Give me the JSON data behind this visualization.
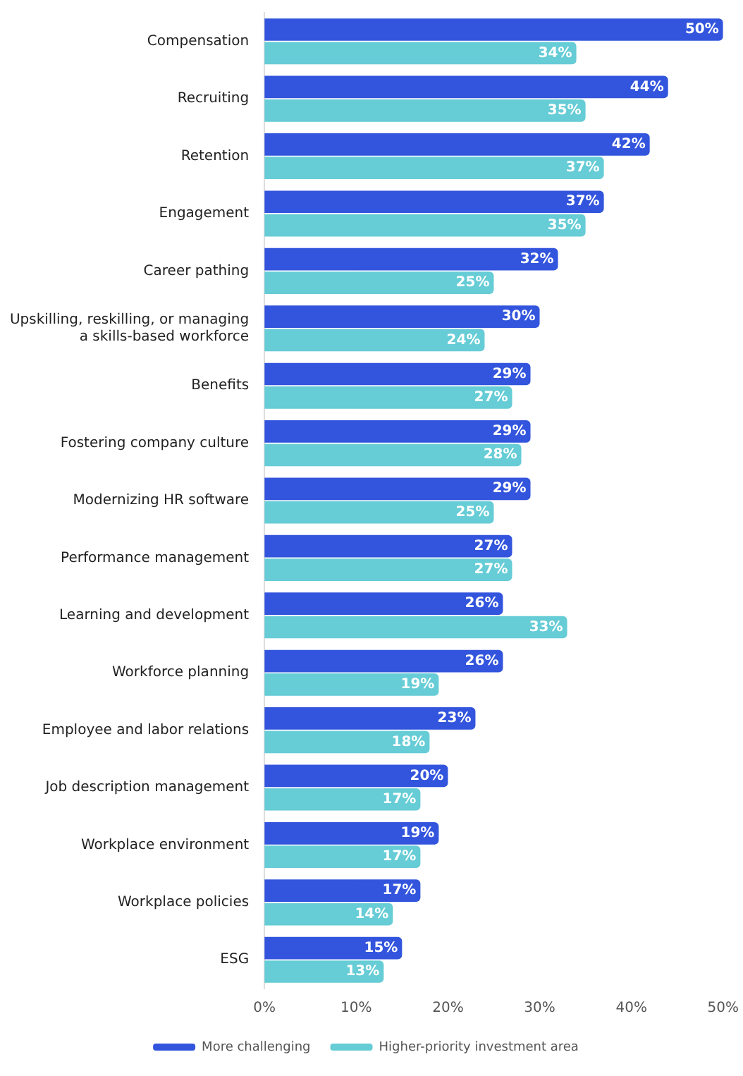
{
  "chart_data": {
    "type": "bar",
    "orientation": "horizontal",
    "categories": [
      "Compensation",
      "Recruiting",
      "Retention",
      "Engagement",
      "Career pathing",
      "Upskilling, reskilling, or managing\na skills-based workforce",
      "Benefits",
      "Fostering company culture",
      "Modernizing HR software",
      "Performance management",
      "Learning and development",
      "Workforce planning",
      "Employee and labor relations",
      "Job description management",
      "Workplace environment",
      "Workplace policies",
      "ESG"
    ],
    "series": [
      {
        "name": "More challenging",
        "color": "#3355dd",
        "values": [
          50,
          44,
          42,
          37,
          32,
          30,
          29,
          29,
          29,
          27,
          26,
          26,
          23,
          20,
          19,
          17,
          15
        ],
        "value_labels": [
          "50%",
          "44%",
          "42%",
          "37%",
          "32%",
          "30%",
          "29%",
          "29%",
          "29%",
          "27%",
          "26%",
          "26%",
          "23%",
          "20%",
          "19%",
          "17%",
          "15%"
        ]
      },
      {
        "name": "Higher-priority investment area",
        "color": "#66ccd6",
        "values": [
          34,
          35,
          37,
          35,
          25,
          24,
          27,
          28,
          25,
          27,
          33,
          19,
          18,
          17,
          17,
          14,
          13
        ],
        "value_labels": [
          "34%",
          "35%",
          "37%",
          "35%",
          "25%",
          "24%",
          "27%",
          "28%",
          "25%",
          "27%",
          "33%",
          "19%",
          "18%",
          "17%",
          "17%",
          "14%",
          "13%"
        ]
      }
    ],
    "xlim": [
      0,
      50
    ],
    "xticks": [
      {
        "value": 0,
        "label": "0%"
      },
      {
        "value": 10,
        "label": "10%"
      },
      {
        "value": 20,
        "label": "20%"
      },
      {
        "value": 30,
        "label": "30%"
      },
      {
        "value": 40,
        "label": "40%"
      },
      {
        "value": 50,
        "label": "50%"
      }
    ],
    "grid": false,
    "legend": "bottom"
  }
}
